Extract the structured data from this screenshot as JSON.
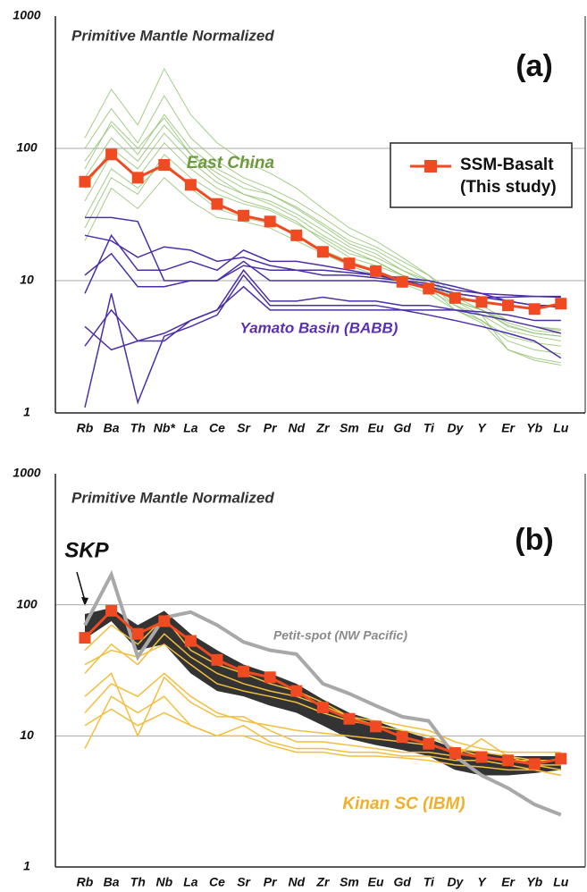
{
  "chart_data": [
    {
      "type": "line",
      "title": "Primitive Mantle Normalized",
      "panel_label": "(a)",
      "log_scale": true,
      "grid": true,
      "categories": [
        "Rb",
        "Ba",
        "Th",
        "Nb*",
        "La",
        "Ce",
        "Sr",
        "Pr",
        "Nd",
        "Zr",
        "Sm",
        "Eu",
        "Gd",
        "Ti",
        "Dy",
        "Y",
        "Er",
        "Yb",
        "Lu"
      ],
      "ylim": [
        1,
        1000
      ],
      "yticks": [
        1,
        10,
        100,
        1000
      ],
      "legend": "upper right",
      "groups": [
        {
          "label": "East China",
          "color": "#8cc06a",
          "lines": [
            [
              60,
              120,
              80,
              150,
              90,
              60,
              45,
              40,
              32,
              24,
              18,
              15,
              12,
              10,
              7,
              6,
              4.5,
              4,
              3.8
            ],
            [
              40,
              90,
              60,
              110,
              70,
              50,
              40,
              35,
              28,
              20,
              15,
              13,
              11,
              9,
              7,
              6,
              4.8,
              4.2,
              4
            ],
            [
              100,
              200,
              110,
              250,
              120,
              80,
              60,
              50,
              40,
              30,
              22,
              18,
              14,
              11,
              8,
              6.5,
              5,
              4.5,
              4.2
            ],
            [
              30,
              70,
              50,
              80,
              50,
              35,
              30,
              27,
              22,
              17,
              14,
              12,
              10,
              8.5,
              6.5,
              5.5,
              4.2,
              3.8,
              3.5
            ],
            [
              80,
              150,
              90,
              180,
              100,
              70,
              55,
              45,
              35,
              26,
              19,
              16,
              12,
              9.5,
              6.5,
              5,
              3.5,
              3,
              2.8
            ],
            [
              20,
              50,
              35,
              60,
              40,
              30,
              28,
              25,
              20,
              16,
              13,
              11,
              9.5,
              8,
              6,
              5,
              3.8,
              3.4,
              3.2
            ],
            [
              120,
              280,
              150,
              400,
              180,
              110,
              80,
              65,
              50,
              35,
              25,
              20,
              15,
              11,
              7,
              5.5,
              3,
              2.5,
              2.3
            ],
            [
              50,
              100,
              70,
              130,
              80,
              55,
              45,
              38,
              30,
              22,
              17,
              14,
              11,
              9,
              6,
              4.8,
              3,
              2.6,
              2.4
            ],
            [
              70,
              160,
              100,
              170,
              90,
              65,
              50,
              45,
              36,
              27,
              20,
              17,
              13,
              10,
              7.5,
              6,
              4.6,
              4,
              3.8
            ],
            [
              25,
              60,
              45,
              90,
              60,
              45,
              38,
              34,
              27,
              21,
              16,
              14,
              11,
              9.5,
              7,
              6,
              5,
              4.5,
              4.3
            ]
          ]
        },
        {
          "label": "Yamato Basin (BABB)",
          "color": "#4b2fa8",
          "lines": [
            [
              8,
              22,
              12,
              12,
              14,
              12,
              17,
              14,
              14,
              13,
              12,
              11,
              10,
              9,
              8,
              7.5,
              7.5,
              7.6,
              7.5
            ],
            [
              30,
              30,
              28,
              10,
              10,
              10,
              13,
              12,
              12,
              11,
              11,
              10.5,
              10,
              9.5,
              8.5,
              8,
              7.8,
              7.6,
              7.6
            ],
            [
              4.5,
              3,
              3.5,
              3.5,
              5,
              6,
              12,
              7,
              7,
              7.5,
              7,
              7,
              6.5,
              6.5,
              6,
              5.5,
              5,
              4.5,
              4
            ],
            [
              1.1,
              8,
              1.2,
              3.8,
              4.5,
              5.5,
              11,
              6.5,
              6.5,
              6.5,
              6.5,
              6.5,
              6,
              6,
              6,
              5.8,
              5.5,
              5,
              5
            ],
            [
              11,
              16,
              9,
              9,
              10,
              10,
              14,
              10,
              10,
              10,
              10,
              10,
              9.5,
              9,
              8,
              7.5,
              7,
              6.5,
              6.3
            ],
            [
              3.2,
              6,
              3.5,
              4,
              5,
              6,
              9,
              6,
              6,
              6,
              6,
              6,
              6,
              5.5,
              5,
              4.5,
              4,
              3.5,
              2.6
            ],
            [
              22,
              20,
              15,
              18,
              17,
              14,
              15,
              13,
              12,
              12,
              11.5,
              11,
              10.5,
              10,
              9,
              8,
              7,
              6.5,
              6.5
            ]
          ]
        }
      ],
      "series": [
        {
          "name": "SSM-Basalt (This study)",
          "color": "#f04a22",
          "values": [
            56,
            90,
            60,
            75,
            53,
            38,
            31,
            28,
            22,
            16.5,
            13.5,
            11.8,
            9.8,
            8.7,
            7.4,
            6.9,
            6.5,
            6.1,
            6.7
          ]
        }
      ]
    },
    {
      "type": "line",
      "title": "Primitive Mantle Normalized",
      "panel_label": "(b)",
      "log_scale": true,
      "grid": true,
      "categories": [
        "Rb",
        "Ba",
        "Th",
        "Nb",
        "La",
        "Ce",
        "Sr",
        "Pr",
        "Nd",
        "Zr",
        "Sm",
        "Eu",
        "Gd",
        "Ti",
        "Dy",
        "Y",
        "Er",
        "Yb",
        "Lu"
      ],
      "ylim": [
        1,
        1000
      ],
      "yticks": [
        1,
        10,
        100,
        1000
      ],
      "band": {
        "label": "SKP",
        "color": "#333333",
        "lower": [
          55,
          75,
          45,
          50,
          30,
          22,
          20,
          17,
          15,
          12,
          9.5,
          8.5,
          7.8,
          7,
          5.5,
          5,
          5,
          5.2,
          5.5
        ],
        "upper": [
          85,
          95,
          70,
          90,
          60,
          45,
          35,
          30,
          25,
          19,
          15,
          13,
          11,
          9.5,
          8,
          7.5,
          7,
          7,
          7
        ]
      },
      "groups": [
        {
          "label": "Kinan SC (IBM)",
          "color": "#f2be3e",
          "lines": [
            [
              8,
              20,
              15,
              20,
              12,
              10,
              12,
              9,
              8,
              8,
              7.5,
              7.5,
              7,
              7,
              6.5,
              6.5,
              6,
              5.5,
              5
            ],
            [
              15,
              25,
              20,
              30,
              20,
              15,
              13,
              12,
              11,
              10.5,
              10,
              9.5,
              9,
              8.5,
              7.5,
              7,
              6.5,
              6,
              5.5
            ],
            [
              35,
              45,
              40,
              50,
              35,
              25,
              22,
              20,
              18,
              15,
              13,
              12,
              11,
              10,
              8,
              7,
              6.5,
              6.5,
              6.5
            ],
            [
              20,
              30,
              10,
              28,
              18,
              14,
              14,
              11,
              9,
              9,
              8.5,
              8,
              7.5,
              7.5,
              7,
              9.5,
              7,
              6,
              6
            ],
            [
              12,
              16,
              12,
              15,
              12,
              10,
              10,
              8.5,
              7.5,
              7.5,
              7,
              7,
              6.8,
              6.5,
              6,
              5.8,
              5.5,
              5.5,
              5
            ],
            [
              30,
              50,
              35,
              60,
              40,
              30,
              25,
              22,
              20,
              17,
              14,
              13,
              12,
              11,
              9,
              8,
              7.5,
              7.5,
              7.5
            ],
            [
              45,
              70,
              50,
              80,
              45,
              35,
              30,
              25,
              22,
              18,
              14,
              12,
              11,
              10,
              8,
              7.5,
              7,
              6.5,
              6.5
            ]
          ]
        },
        {
          "label": "Petit-spot (NW Pacific)",
          "color": "#a8a8a8",
          "lines": [
            [
              70,
              170,
              40,
              80,
              88,
              70,
              52,
              45,
              42,
              25,
              21,
              17,
              14,
              13,
              7,
              5,
              4,
              3,
              2.5
            ]
          ]
        }
      ],
      "series": [
        {
          "color": "#f04a22",
          "values": [
            56,
            90,
            60,
            75,
            53,
            38,
            31,
            28,
            22,
            16.5,
            13.5,
            11.8,
            9.8,
            8.7,
            7.4,
            6.9,
            6.5,
            6.1,
            6.7
          ]
        }
      ]
    }
  ]
}
